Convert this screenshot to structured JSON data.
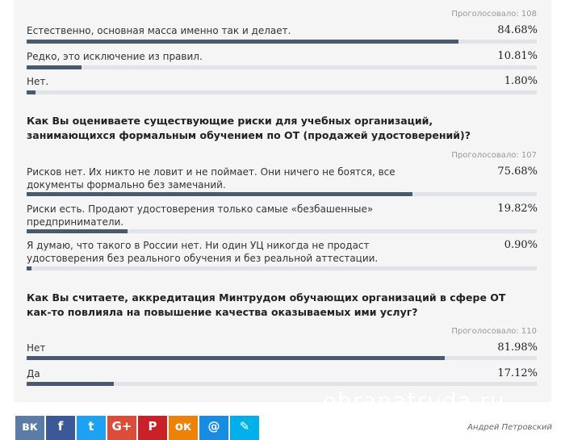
{
  "polls": [
    {
      "question": "",
      "votes": "Проголосовало: 108",
      "items": [
        {
          "label": "Естественно, основная масса именно так и делает.",
          "pct": "84.68%",
          "value": 84.68
        },
        {
          "label": "Редко, это исключение из правил.",
          "pct": "10.81%",
          "value": 10.81
        },
        {
          "label": "Нет.",
          "pct": "1.80%",
          "value": 1.8
        }
      ]
    },
    {
      "question": "Как Вы оцениваете существующие риски для учебных организаций, занимающихся формальным обучением по ОТ (продажей удостоверений)?",
      "votes": "Проголосовало: 107",
      "items": [
        {
          "label": "Рисков нет. Их никто не ловит и не поймает. Они ничего не боятся, все документы формально без замечаний.",
          "pct": "75.68%",
          "value": 75.68
        },
        {
          "label": "Риски есть. Продают удостоверения только самые «безбашенные» предприниматели.",
          "pct": "19.82%",
          "value": 19.82
        },
        {
          "label": "Я думаю, что такого в России нет. Ни один УЦ никогда не продаст удостоверения без реального обучения и без реальной аттестации.",
          "pct": "0.90%",
          "value": 0.9
        }
      ]
    },
    {
      "question": "Как Вы считаете, аккредитация Минтрудом обучающих организаций в сфере ОТ как-то повлияла на повышение качества оказываемых ими услуг?",
      "votes": "Проголосовало: 110",
      "items": [
        {
          "label": "Нет",
          "pct": "81.98%",
          "value": 81.98
        },
        {
          "label": "Да",
          "pct": "17.12%",
          "value": 17.12
        }
      ]
    }
  ],
  "watermark": "ohranatruda.ru",
  "social": [
    {
      "name": "vk",
      "glyph": "вк",
      "color": "#5b7ca6"
    },
    {
      "name": "facebook",
      "glyph": "f",
      "color": "#3b5998"
    },
    {
      "name": "twitter",
      "glyph": "t",
      "color": "#1da1f2"
    },
    {
      "name": "google-plus",
      "glyph": "G+",
      "color": "#dd4b39"
    },
    {
      "name": "pinterest",
      "glyph": "P",
      "color": "#cb2027"
    },
    {
      "name": "odnoklassniki",
      "glyph": "ок",
      "color": "#ee8208"
    },
    {
      "name": "mail-ru",
      "glyph": "@",
      "color": "#168de2"
    },
    {
      "name": "livejournal",
      "glyph": "✎",
      "color": "#00b0ea"
    }
  ],
  "author": "Андрей Петровский",
  "colors": {
    "bar": "#4a5a6e",
    "track": "#e0e3e7",
    "panel": "#f5f5f5"
  }
}
